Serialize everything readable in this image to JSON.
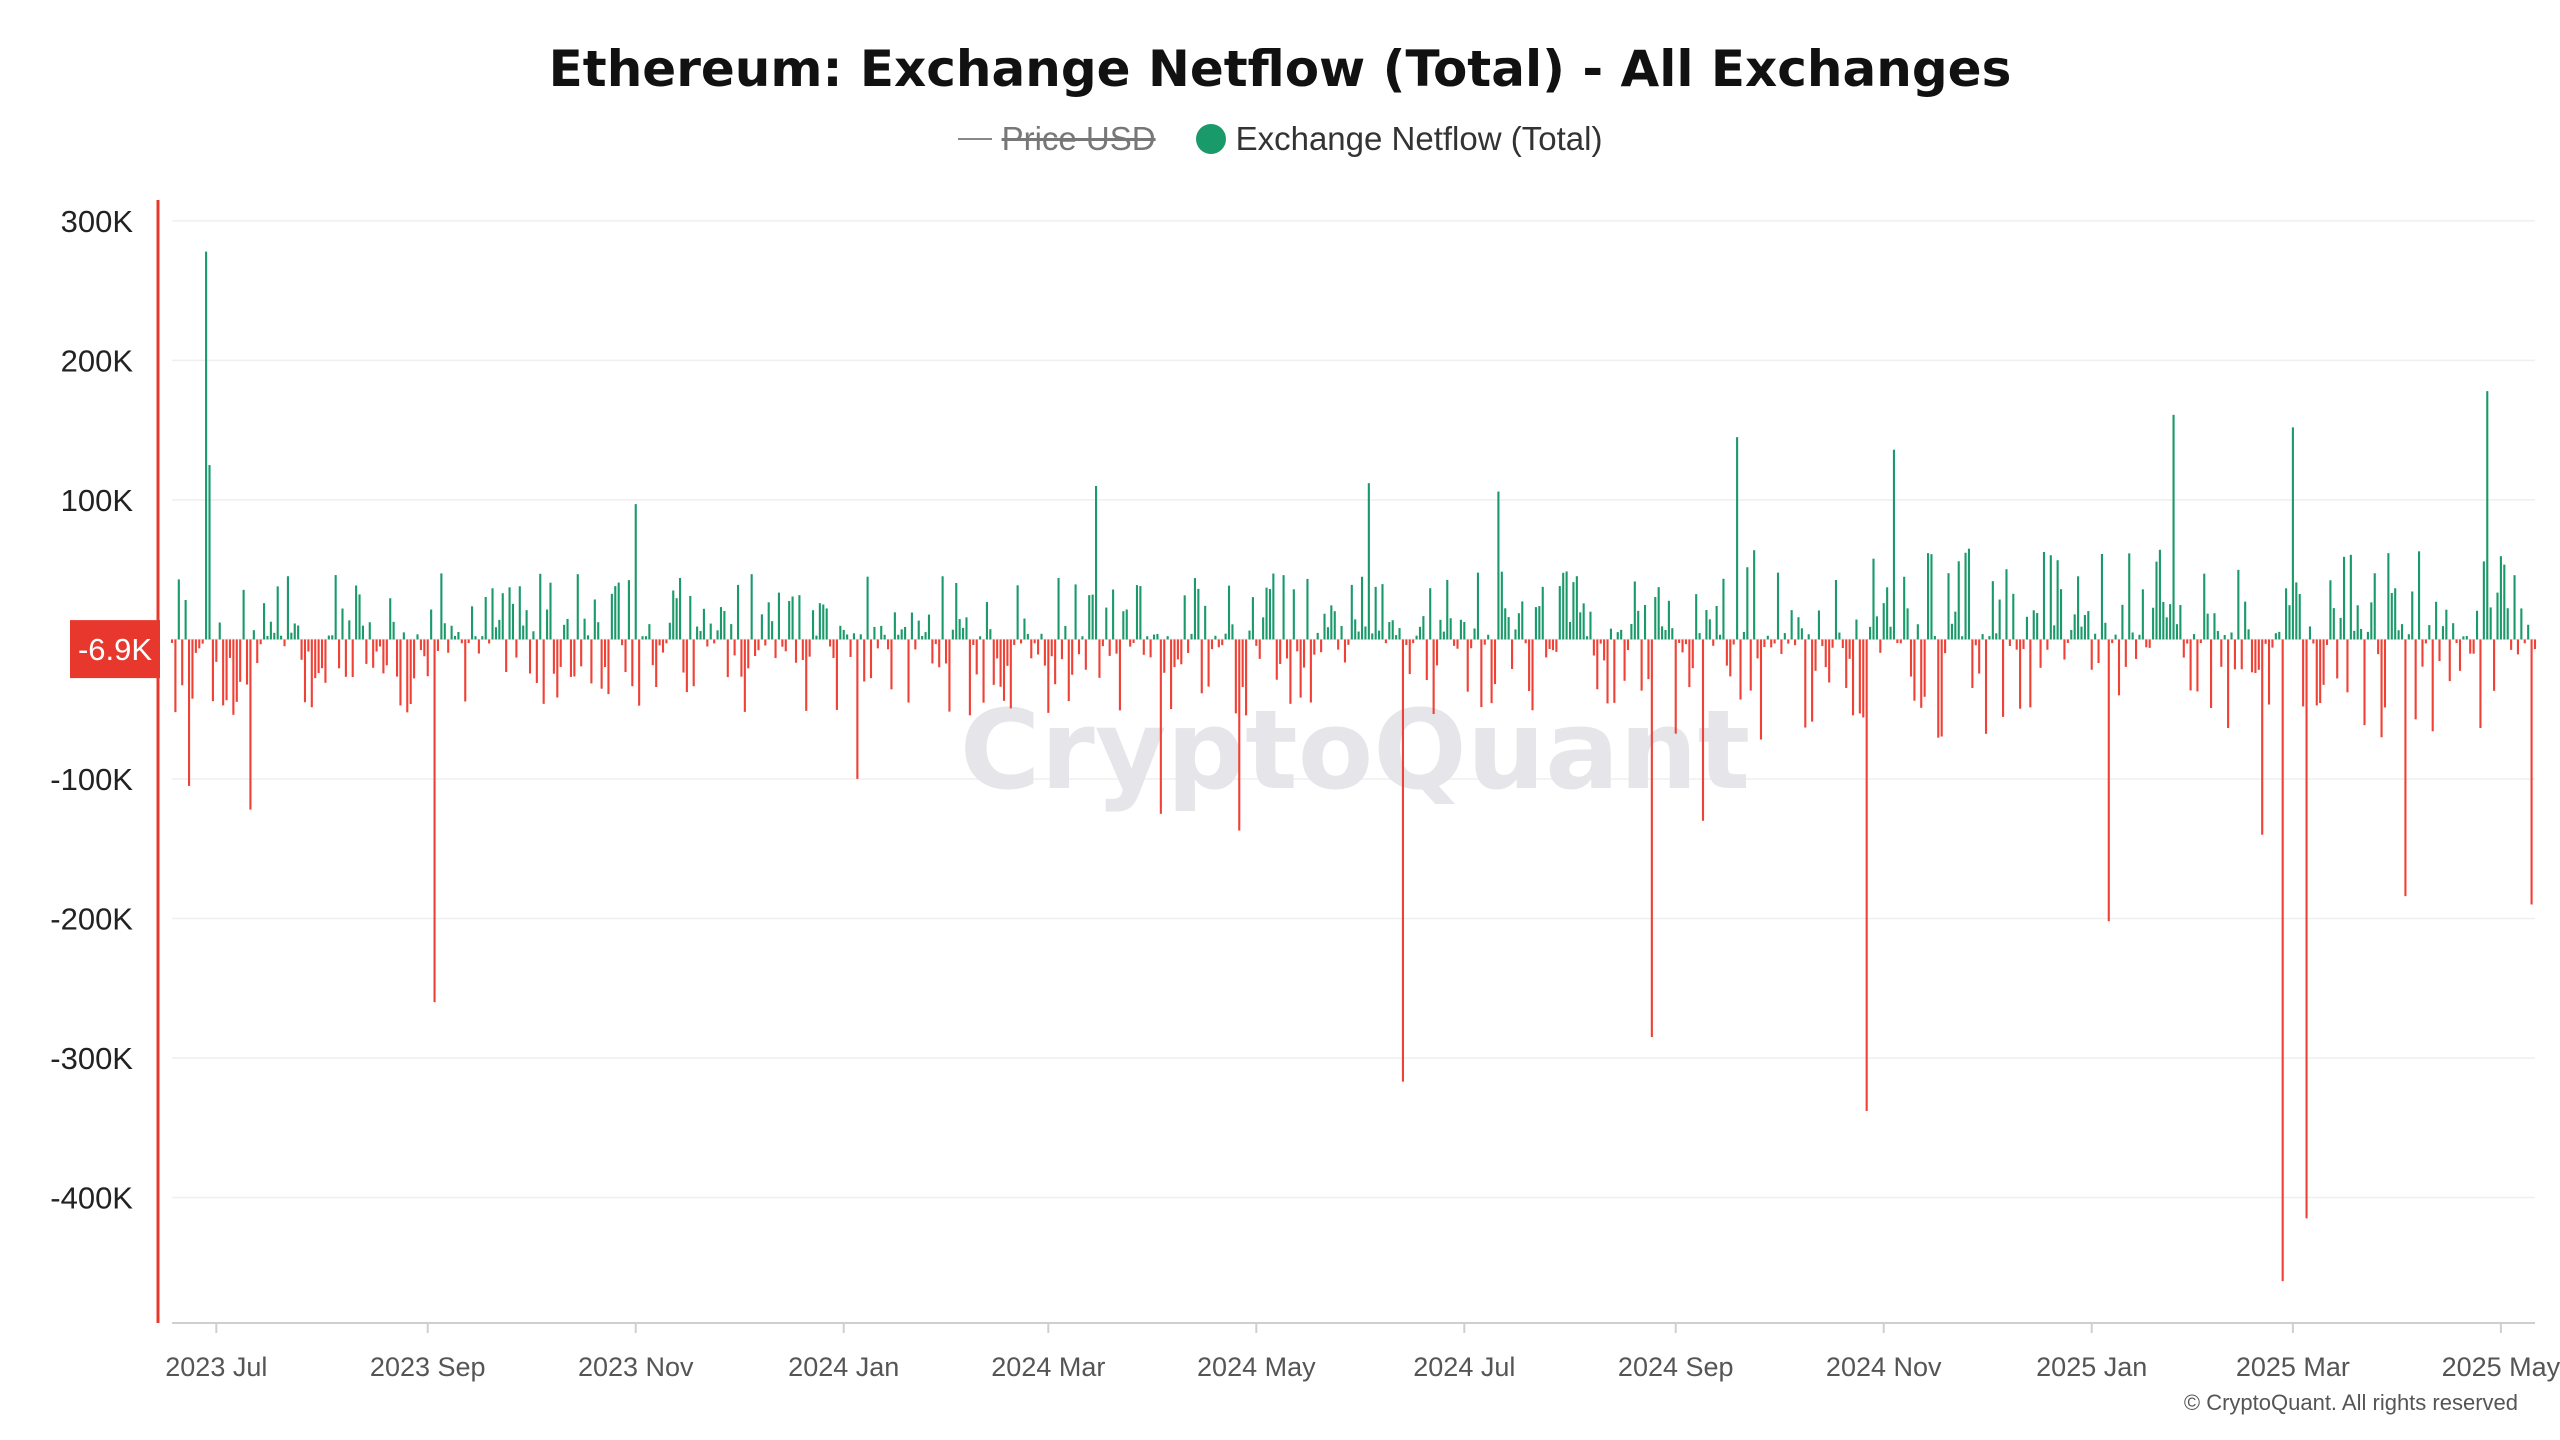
{
  "title": "Ethereum: Exchange Netflow (Total) - All Exchanges",
  "legend": {
    "price_label": "Price USD",
    "netflow_label": "Exchange Netflow (Total)"
  },
  "colors": {
    "positive": "#1a9a6a",
    "negative": "#ef4136",
    "price_line": "#888888",
    "crosshair": "#e8382e"
  },
  "watermark": "CryptoQuant",
  "copyright": "© CryptoQuant. All rights reserved",
  "current_value_label": "-6.9K",
  "chart_data": {
    "type": "bar",
    "title": "Ethereum: Exchange Netflow (Total) - All Exchanges",
    "series_name": "Exchange Netflow (Total)",
    "y_axis": {
      "ticks": [
        300000,
        200000,
        100000,
        0,
        -100000,
        -200000,
        -300000,
        -400000
      ],
      "tick_labels": [
        "300K",
        "200K",
        "100K",
        "",
        "-100K",
        "-200K",
        "-300K",
        "-400K"
      ],
      "ylim": [
        -490000,
        315000
      ]
    },
    "x_axis": {
      "start": "2023-06-18",
      "end": "2025-05-11",
      "tick_labels": [
        "2023 Jul",
        "2023 Sep",
        "2023 Nov",
        "2024 Jan",
        "2024 Mar",
        "2024 May",
        "2024 Jul",
        "2024 Sep",
        "2024 Nov",
        "2025 Jan",
        "2025 Mar",
        "2025 May"
      ],
      "tick_dates": [
        "2023-07-01",
        "2023-09-01",
        "2023-11-01",
        "2024-01-01",
        "2024-03-01",
        "2024-05-01",
        "2024-07-01",
        "2024-09-01",
        "2024-11-01",
        "2025-01-01",
        "2025-03-01",
        "2025-05-01"
      ]
    },
    "notable_points": [
      {
        "date": "2023-06-28",
        "value": 278000
      },
      {
        "date": "2023-06-29",
        "value": 125000
      },
      {
        "date": "2023-06-23",
        "value": -105000
      },
      {
        "date": "2023-07-11",
        "value": -122000
      },
      {
        "date": "2023-09-03",
        "value": -260000
      },
      {
        "date": "2023-11-01",
        "value": 97000
      },
      {
        "date": "2024-01-05",
        "value": -100000
      },
      {
        "date": "2024-03-15",
        "value": 110000
      },
      {
        "date": "2024-04-03",
        "value": -125000
      },
      {
        "date": "2024-04-26",
        "value": -137000
      },
      {
        "date": "2024-06-03",
        "value": 112000
      },
      {
        "date": "2024-06-13",
        "value": -317000
      },
      {
        "date": "2024-07-11",
        "value": 106000
      },
      {
        "date": "2024-08-25",
        "value": -285000
      },
      {
        "date": "2024-09-09",
        "value": -130000
      },
      {
        "date": "2024-09-19",
        "value": 145000
      },
      {
        "date": "2024-10-27",
        "value": -338000
      },
      {
        "date": "2024-11-04",
        "value": 136000
      },
      {
        "date": "2025-01-06",
        "value": -202000
      },
      {
        "date": "2025-01-25",
        "value": 161000
      },
      {
        "date": "2025-02-20",
        "value": -140000
      },
      {
        "date": "2025-02-26",
        "value": -460000
      },
      {
        "date": "2025-03-01",
        "value": 152000
      },
      {
        "date": "2025-03-05",
        "value": -415000
      },
      {
        "date": "2025-04-03",
        "value": -184000
      },
      {
        "date": "2025-04-27",
        "value": 178000
      },
      {
        "date": "2025-05-10",
        "value": -190000
      },
      {
        "date": "2025-05-11",
        "value": -6900
      }
    ]
  }
}
